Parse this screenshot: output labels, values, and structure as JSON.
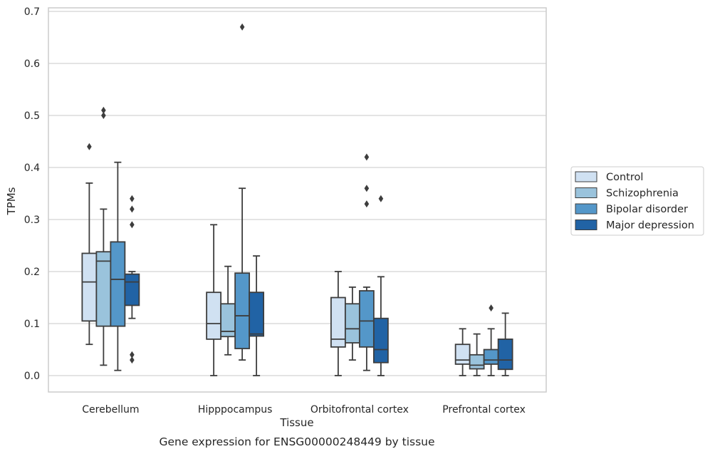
{
  "chart_data": {
    "type": "box",
    "title": "",
    "caption": "Gene expression for ENSG00000248449 by tissue",
    "xlabel": "Tissue",
    "ylabel": "TPMs",
    "ylim": [
      -0.03,
      0.705
    ],
    "yticks": [
      "0.0",
      "0.1",
      "0.2",
      "0.3",
      "0.4",
      "0.5",
      "0.6",
      "0.7"
    ],
    "grid": "horizontal",
    "legend_position": "right, outside plot",
    "categories": [
      "Cerebellum",
      "Hipppocampus",
      "Orbitofrontal cortex",
      "Prefrontal cortex"
    ],
    "series": [
      {
        "name": "Control",
        "color": "#d0e1f2",
        "boxes": [
          {
            "whislo": 0.06,
            "q1": 0.105,
            "med": 0.18,
            "q3": 0.235,
            "whishi": 0.37,
            "fliers": [
              0.44
            ]
          },
          {
            "whislo": 0.0,
            "q1": 0.07,
            "med": 0.1,
            "q3": 0.16,
            "whishi": 0.29,
            "fliers": []
          },
          {
            "whislo": 0.0,
            "q1": 0.055,
            "med": 0.07,
            "q3": 0.15,
            "whishi": 0.2,
            "fliers": []
          },
          {
            "whislo": 0.0,
            "q1": 0.022,
            "med": 0.03,
            "q3": 0.06,
            "whishi": 0.09,
            "fliers": []
          }
        ]
      },
      {
        "name": "Schizophrenia",
        "color": "#9ac3dc",
        "boxes": [
          {
            "whislo": 0.02,
            "q1": 0.095,
            "med": 0.22,
            "q3": 0.238,
            "whishi": 0.32,
            "fliers": [
              0.5,
              0.51
            ]
          },
          {
            "whislo": 0.04,
            "q1": 0.075,
            "med": 0.085,
            "q3": 0.138,
            "whishi": 0.21,
            "fliers": []
          },
          {
            "whislo": 0.03,
            "q1": 0.063,
            "med": 0.09,
            "q3": 0.138,
            "whishi": 0.17,
            "fliers": []
          },
          {
            "whislo": 0.0,
            "q1": 0.013,
            "med": 0.02,
            "q3": 0.04,
            "whishi": 0.08,
            "fliers": []
          }
        ]
      },
      {
        "name": "Bipolar disorder",
        "color": "#5497c9",
        "boxes": [
          {
            "whislo": 0.01,
            "q1": 0.095,
            "med": 0.185,
            "q3": 0.257,
            "whishi": 0.41,
            "fliers": []
          },
          {
            "whislo": 0.03,
            "q1": 0.052,
            "med": 0.115,
            "q3": 0.197,
            "whishi": 0.36,
            "fliers": [
              0.67
            ]
          },
          {
            "whislo": 0.01,
            "q1": 0.055,
            "med": 0.105,
            "q3": 0.163,
            "whishi": 0.17,
            "fliers": [
              0.33,
              0.36,
              0.42
            ]
          },
          {
            "whislo": 0.0,
            "q1": 0.022,
            "med": 0.03,
            "q3": 0.05,
            "whishi": 0.09,
            "fliers": [
              0.13
            ]
          }
        ]
      },
      {
        "name": "Major depression",
        "color": "#2163a5",
        "boxes": [
          {
            "whislo": 0.11,
            "q1": 0.135,
            "med": 0.18,
            "q3": 0.195,
            "whishi": 0.2,
            "fliers": [
              0.03,
              0.04,
              0.29,
              0.32,
              0.34
            ]
          },
          {
            "whislo": 0.0,
            "q1": 0.076,
            "med": 0.08,
            "q3": 0.16,
            "whishi": 0.23,
            "fliers": []
          },
          {
            "whislo": 0.0,
            "q1": 0.025,
            "med": 0.05,
            "q3": 0.11,
            "whishi": 0.19,
            "fliers": [
              0.34
            ]
          },
          {
            "whislo": 0.0,
            "q1": 0.012,
            "med": 0.03,
            "q3": 0.07,
            "whishi": 0.12,
            "fliers": []
          }
        ]
      }
    ]
  }
}
